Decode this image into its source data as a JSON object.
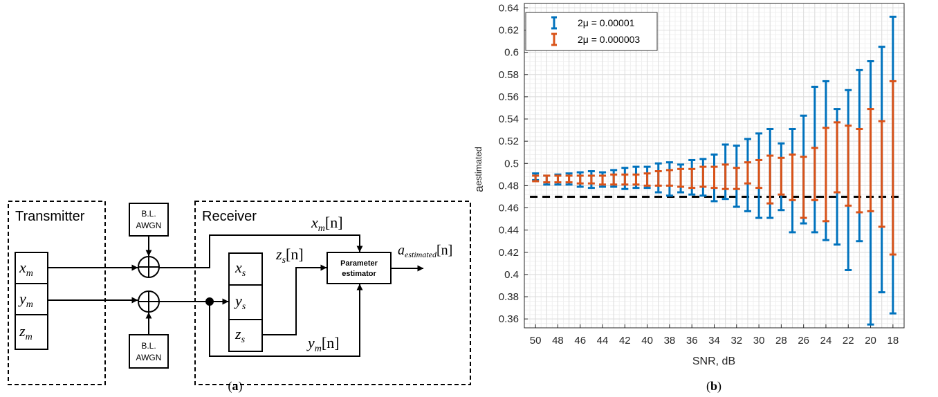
{
  "diagram": {
    "panel_label": "a",
    "transmitter": {
      "title": "Transmitter",
      "vars": [
        "x",
        "y",
        "z"
      ],
      "sub": "m"
    },
    "receiver": {
      "title": "Receiver",
      "vars": [
        "x",
        "y",
        "z"
      ],
      "sub": "s"
    },
    "noise": {
      "line1": "B.L.",
      "line2": "AWGN"
    },
    "estimator": {
      "line1": "Parameter",
      "line2": "estimator"
    },
    "signals": {
      "xm_n": {
        "var": "x",
        "sub": "m",
        "arg": "[n]"
      },
      "zs_n": {
        "var": "z",
        "sub": "s",
        "arg": "[n]"
      },
      "ym_n": {
        "var": "y",
        "sub": "m",
        "arg": "[n]"
      },
      "out": {
        "var": "a",
        "sub": "estimated",
        "arg": "[n]"
      }
    }
  },
  "chart_data": {
    "panel_label": "b",
    "type": "errorbar",
    "xlabel": "SNR, dB",
    "ylabel": {
      "main": "a",
      "sub": "estimated"
    },
    "x_reversed": true,
    "xlim": [
      51,
      17
    ],
    "ylim": [
      0.352,
      0.644
    ],
    "x_ticks": [
      50,
      48,
      46,
      44,
      42,
      40,
      38,
      36,
      34,
      32,
      30,
      28,
      26,
      24,
      22,
      20,
      18
    ],
    "y_ticks": [
      0.36,
      0.38,
      0.4,
      0.42,
      0.44,
      0.46,
      0.48,
      0.5,
      0.52,
      0.54,
      0.56,
      0.58,
      0.6,
      0.62,
      0.64
    ],
    "grid": "major and minor",
    "legend_position": "top-left",
    "reference_line": {
      "y": 0.47,
      "style": "dashed",
      "color": "#000000"
    },
    "series": [
      {
        "name": "2μ = 0.00001",
        "color": "#0072BD",
        "x": [
          50,
          49,
          48,
          47,
          46,
          45,
          44,
          43,
          42,
          41,
          40,
          39,
          38,
          37,
          36,
          35,
          34,
          33,
          32,
          31,
          30,
          29,
          28,
          27,
          26,
          25,
          24,
          23,
          22,
          21,
          20,
          19,
          18
        ],
        "low": [
          0.485,
          0.481,
          0.481,
          0.481,
          0.479,
          0.478,
          0.479,
          0.479,
          0.477,
          0.478,
          0.478,
          0.474,
          0.471,
          0.474,
          0.472,
          0.471,
          0.466,
          0.468,
          0.461,
          0.457,
          0.451,
          0.451,
          0.458,
          0.438,
          0.446,
          0.438,
          0.431,
          0.427,
          0.404,
          0.43,
          0.355,
          0.384,
          0.365
        ],
        "high": [
          0.491,
          0.489,
          0.49,
          0.491,
          0.492,
          0.493,
          0.492,
          0.494,
          0.496,
          0.497,
          0.497,
          0.5,
          0.501,
          0.499,
          0.503,
          0.504,
          0.508,
          0.517,
          0.516,
          0.522,
          0.527,
          0.531,
          0.518,
          0.531,
          0.543,
          0.569,
          0.574,
          0.549,
          0.566,
          0.584,
          0.592,
          0.605,
          0.632
        ]
      },
      {
        "name": "2μ = 0.000003",
        "color": "#D95319",
        "x": [
          50,
          49,
          48,
          47,
          46,
          45,
          44,
          43,
          42,
          41,
          40,
          39,
          38,
          37,
          36,
          35,
          34,
          33,
          32,
          31,
          30,
          29,
          28,
          27,
          26,
          25,
          24,
          23,
          22,
          21,
          20,
          19,
          18
        ],
        "low": [
          0.484,
          0.483,
          0.483,
          0.483,
          0.482,
          0.482,
          0.481,
          0.481,
          0.481,
          0.481,
          0.48,
          0.48,
          0.48,
          0.479,
          0.478,
          0.479,
          0.478,
          0.477,
          0.477,
          0.482,
          0.478,
          0.464,
          0.472,
          0.467,
          0.451,
          0.467,
          0.448,
          0.474,
          0.462,
          0.456,
          0.457,
          0.443,
          0.418
        ],
        "high": [
          0.489,
          0.489,
          0.489,
          0.489,
          0.489,
          0.489,
          0.489,
          0.49,
          0.49,
          0.49,
          0.491,
          0.493,
          0.494,
          0.495,
          0.495,
          0.497,
          0.497,
          0.499,
          0.496,
          0.501,
          0.503,
          0.507,
          0.505,
          0.508,
          0.506,
          0.514,
          0.532,
          0.537,
          0.534,
          0.531,
          0.549,
          0.538,
          0.574
        ]
      }
    ]
  }
}
